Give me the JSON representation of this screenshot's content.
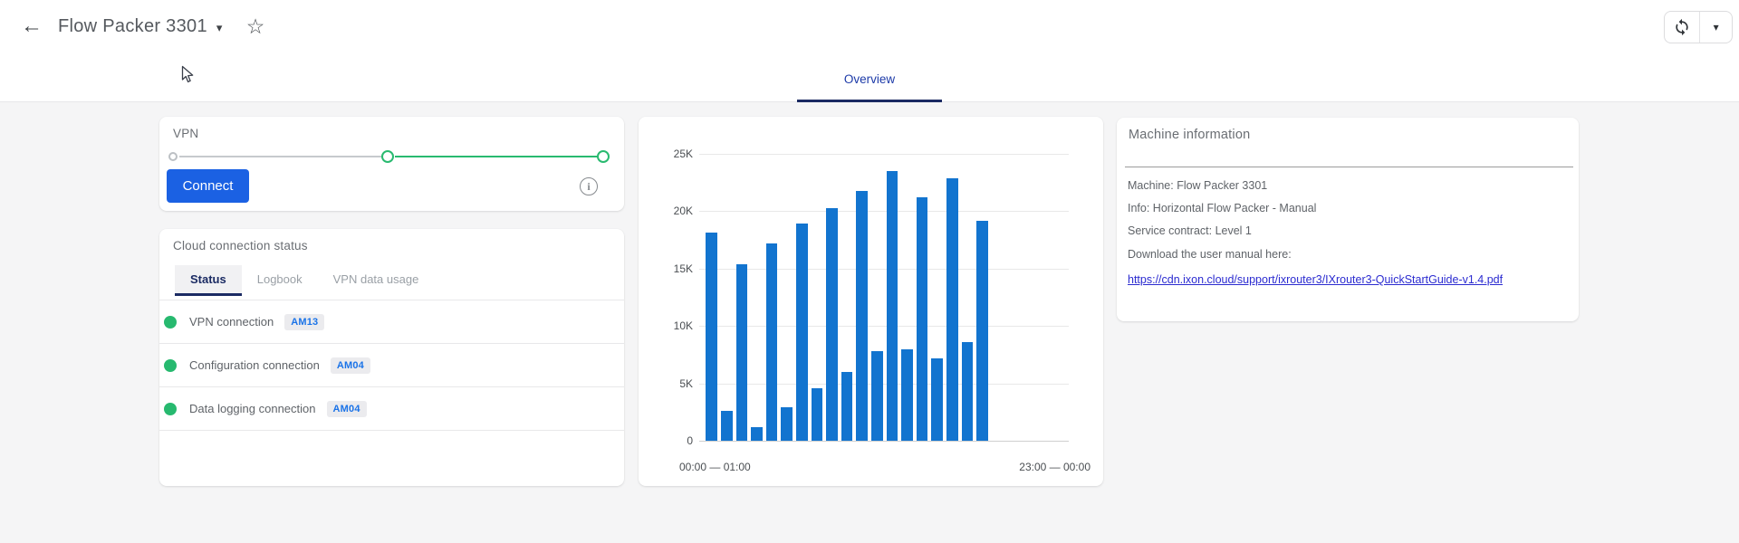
{
  "topbar": {
    "back_icon": "←",
    "title": "Flow Packer 3301",
    "title_caret": "▾",
    "star_icon": "☆",
    "refresh_caret": "▾"
  },
  "nav": {
    "active_tab": "Overview"
  },
  "vpn_card": {
    "title": "VPN",
    "connect_button": "Connect",
    "info_icon": "i"
  },
  "status_card": {
    "title": "Cloud connection status",
    "tabs": [
      {
        "label": "Status",
        "active": true
      },
      {
        "label": "Logbook",
        "active": false
      },
      {
        "label": "VPN data usage",
        "active": false
      }
    ],
    "rows": [
      {
        "label": "VPN connection",
        "badge": "AM13",
        "status": "connected",
        "status_color": "#27b96f"
      },
      {
        "label": "Configuration connection",
        "badge": "AM04",
        "status": "connected",
        "status_color": "#27b96f"
      },
      {
        "label": "Data logging connection",
        "badge": "AM04",
        "status": "connected",
        "status_color": "#27b96f"
      }
    ]
  },
  "chart_data": {
    "type": "bar",
    "title": "",
    "xlabel": "",
    "ylabel": "",
    "x_first_label": "00:00 — 01:00",
    "x_last_label": "23:00 — 00:00",
    "x_slots": 24,
    "ylim": [
      0,
      25000
    ],
    "grid": true,
    "legend": false,
    "yticks": [
      {
        "label": "25K",
        "value": 25000
      },
      {
        "label": "20K",
        "value": 20000
      },
      {
        "label": "15K",
        "value": 15000
      },
      {
        "label": "10K",
        "value": 10000
      },
      {
        "label": "5K",
        "value": 5000
      },
      {
        "label": "0",
        "value": 0
      }
    ],
    "values": [
      18100,
      2600,
      15400,
      1200,
      17200,
      2900,
      18900,
      4600,
      20300,
      6000,
      21800,
      7800,
      23500,
      8000,
      21200,
      7200,
      22900,
      8600,
      19200
    ],
    "bar_color": "#1274cf"
  },
  "machine_card": {
    "title": "Machine information",
    "lines": [
      "Machine: Flow Packer 3301",
      "Info: Horizontal Flow Packer - Manual",
      "Service contract: Level 1",
      "Download the user manual here:"
    ],
    "link": "https://cdn.ixon.cloud/support/ixrouter3/IXrouter3-QuickStartGuide-v1.4.pdf"
  },
  "colors": {
    "accent_blue": "#1b61e3",
    "nav_blue": "#1c3aa8",
    "tab_active_navy": "#1b2b63",
    "success_green": "#27b96f",
    "badge_text_blue": "#1a73e8",
    "link_blue": "#2b2bd0",
    "bar_blue": "#1274cf",
    "page_background": "#f5f5f6"
  }
}
